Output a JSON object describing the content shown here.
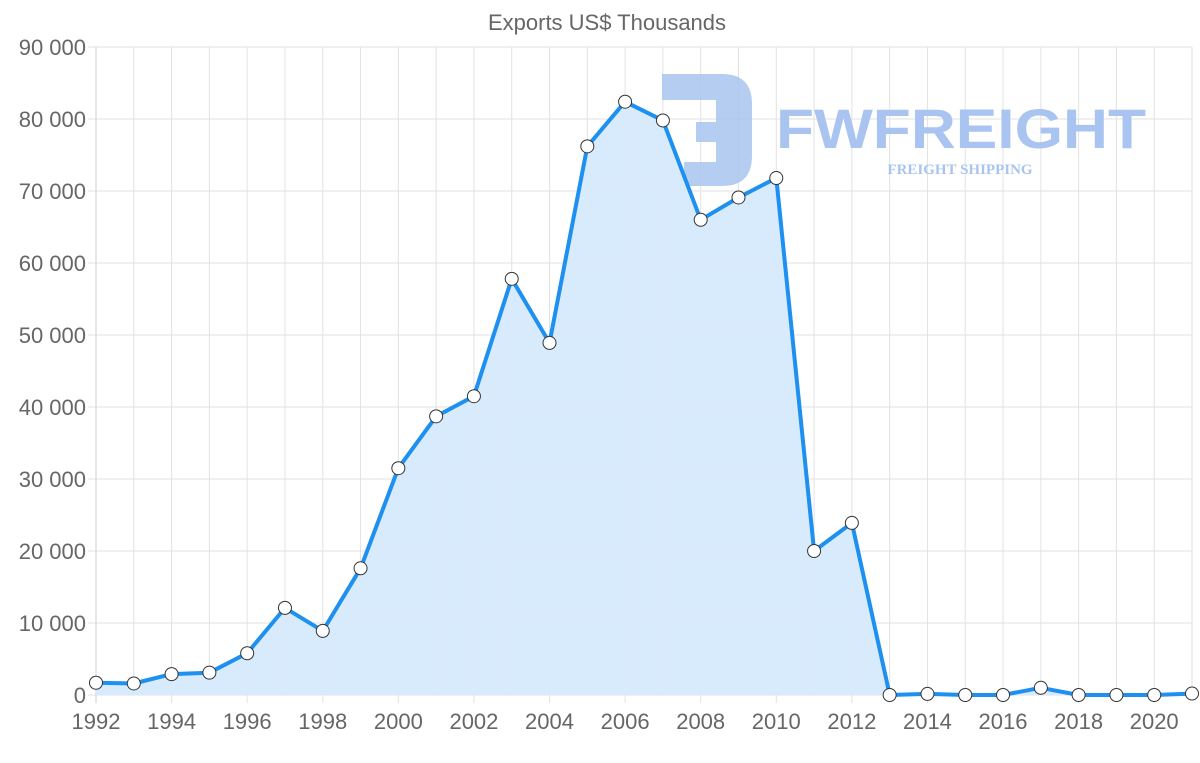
{
  "chart_data": {
    "type": "line",
    "title": "Exports US$ Thousands",
    "xlabel": "",
    "ylabel": "",
    "x": [
      1992,
      1993,
      1994,
      1995,
      1996,
      1997,
      1998,
      1999,
      2000,
      2001,
      2002,
      2003,
      2004,
      2005,
      2006,
      2007,
      2008,
      2009,
      2010,
      2011,
      2012,
      2013,
      2014,
      2015,
      2016,
      2017,
      2018,
      2019,
      2020,
      2021
    ],
    "series": [
      {
        "name": "Exports US$ Thousands",
        "values": [
          1700,
          1600,
          2900,
          3100,
          5800,
          12100,
          8900,
          17600,
          31500,
          38700,
          41500,
          57800,
          48900,
          76200,
          82400,
          79800,
          66000,
          69100,
          71800,
          20000,
          23900,
          0,
          150,
          0,
          0,
          1000,
          0,
          0,
          0,
          200
        ],
        "color": "#1e90ef",
        "fill": "#d6eafc"
      }
    ],
    "ylim": [
      0,
      90000
    ],
    "yticks": [
      0,
      10000,
      20000,
      30000,
      40000,
      50000,
      60000,
      70000,
      80000,
      90000
    ],
    "ytick_labels": [
      "0",
      "10 000",
      "20 000",
      "30 000",
      "40 000",
      "50 000",
      "60 000",
      "70 000",
      "80 000",
      "90 000"
    ],
    "xtick_labels": [
      "1992",
      "1994",
      "1996",
      "1998",
      "2000",
      "2002",
      "2004",
      "2006",
      "2008",
      "2010",
      "2012",
      "2014",
      "2016",
      "2018",
      "2020"
    ],
    "grid": true,
    "legend": "none"
  },
  "watermark": {
    "brand": "FWFREIGHT",
    "tagline": "FREIGHT SHIPPING"
  }
}
